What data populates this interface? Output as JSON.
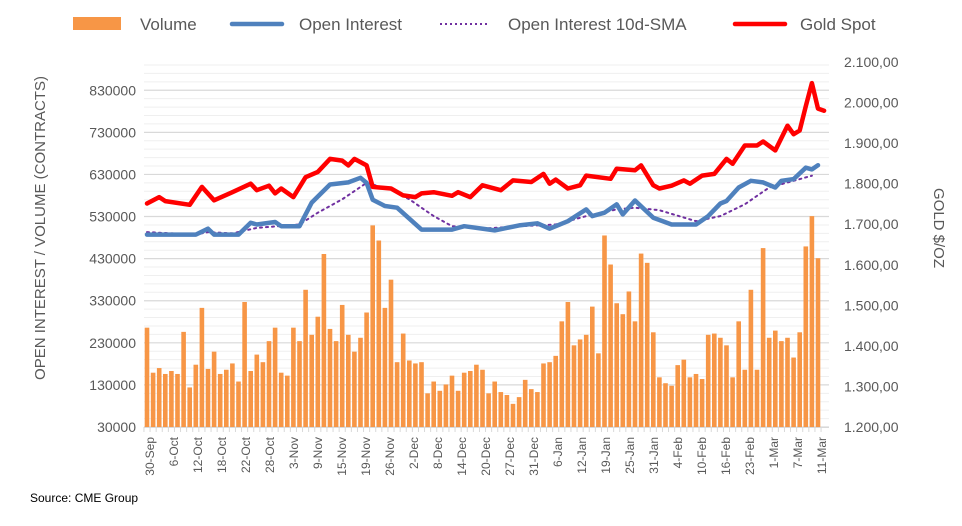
{
  "chart_data": {
    "type": "bar+line",
    "title": "",
    "source": "Source: CME Group",
    "legend_position": "top",
    "grid": true,
    "legend": [
      {
        "name": "Volume",
        "kind": "bar",
        "color": "#f79646"
      },
      {
        "name": "Open Interest",
        "kind": "line",
        "color": "#4f81bd"
      },
      {
        "name": "Open Interest 10d-SMA",
        "kind": "dotted-line",
        "color": "#7030a0"
      },
      {
        "name": "Gold Spot",
        "kind": "line",
        "color": "#ff0000"
      }
    ],
    "y_left": {
      "label": "OPEN INTEREST / VOLUME (CONTRACTS)",
      "range": [
        30000,
        890000
      ],
      "ticks": [
        "30000",
        "130000",
        "230000",
        "330000",
        "430000",
        "530000",
        "630000",
        "730000",
        "830000"
      ],
      "tick_values": [
        30000,
        130000,
        230000,
        330000,
        430000,
        530000,
        630000,
        730000,
        830000
      ]
    },
    "y_right": {
      "label": "GOLD $/OZ",
      "range": [
        1200,
        2100
      ],
      "ticks": [
        "1.200,00",
        "1.300,00",
        "1.400,00",
        "1.500,00",
        "1.600,00",
        "1.700,00",
        "1.800,00",
        "1.900,00",
        "2.000,00",
        "2.100,00"
      ],
      "tick_values": [
        1200,
        1300,
        1400,
        1500,
        1600,
        1700,
        1800,
        1900,
        2000,
        2100
      ]
    },
    "x_tick_labels": [
      "30-Sep",
      "6-Oct",
      "12-Oct",
      "18-Oct",
      "22-Oct",
      "28-Oct",
      "3-Nov",
      "9-Nov",
      "15-Nov",
      "19-Nov",
      "26-Nov",
      "2-Dec",
      "8-Dec",
      "14-Dec",
      "20-Dec",
      "27-Dec",
      "31-Dec",
      "6-Jan",
      "12-Jan",
      "19-Jan",
      "25-Jan",
      "31-Jan",
      "4-Feb",
      "10-Feb",
      "16-Feb",
      "23-Feb",
      "1-Mar",
      "7-Mar",
      "11-Mar"
    ],
    "volume": [
      266000,
      159000,
      170000,
      156000,
      163000,
      156000,
      256000,
      124000,
      178000,
      313000,
      168000,
      209000,
      156000,
      166000,
      181000,
      138000,
      327000,
      163000,
      202000,
      184000,
      234000,
      266000,
      159000,
      152000,
      266000,
      234000,
      356000,
      249000,
      292000,
      441000,
      263000,
      234000,
      320000,
      249000,
      209000,
      242000,
      302000,
      509000,
      473000,
      313000,
      380000,
      184000,
      252000,
      188000,
      181000,
      184000,
      110000,
      138000,
      116000,
      131000,
      152000,
      116000,
      159000,
      163000,
      178000,
      166000,
      110000,
      138000,
      113000,
      106000,
      85000,
      101000,
      142000,
      120000,
      113000,
      181000,
      184000,
      199000,
      281000,
      327000,
      224000,
      238000,
      249000,
      316000,
      205000,
      485000,
      416000,
      324000,
      298000,
      352000,
      281000,
      442000,
      420000,
      255000,
      148000,
      134000,
      128000,
      177000,
      190000,
      148000,
      156000,
      144000,
      249000,
      252000,
      242000,
      224000,
      148000,
      281000,
      166000,
      356000,
      166000,
      455000,
      242000,
      259000,
      234000,
      242000,
      195000,
      255000,
      459000,
      531000,
      431000
    ],
    "open_interest_points": [
      [
        0,
        487000
      ],
      [
        3,
        487000
      ],
      [
        8,
        487000
      ],
      [
        10,
        501000
      ],
      [
        11,
        487000
      ],
      [
        15,
        487000
      ],
      [
        17,
        515000
      ],
      [
        18,
        511000
      ],
      [
        21,
        517000
      ],
      [
        22,
        507000
      ],
      [
        25,
        507000
      ],
      [
        27,
        563000
      ],
      [
        30,
        606000
      ],
      [
        33,
        611000
      ],
      [
        35,
        622000
      ],
      [
        36,
        610000
      ],
      [
        37,
        570000
      ],
      [
        39,
        555000
      ],
      [
        41,
        551000
      ],
      [
        45,
        499000
      ],
      [
        50,
        499000
      ],
      [
        52,
        507000
      ],
      [
        57,
        497000
      ],
      [
        61,
        509000
      ],
      [
        64,
        514000
      ],
      [
        66,
        501000
      ],
      [
        69,
        519000
      ],
      [
        72,
        547000
      ],
      [
        73,
        531000
      ],
      [
        75,
        539000
      ],
      [
        77,
        559000
      ],
      [
        78,
        535000
      ],
      [
        80,
        568000
      ],
      [
        83,
        527000
      ],
      [
        86,
        511000
      ],
      [
        90,
        511000
      ],
      [
        92,
        531000
      ],
      [
        94,
        561000
      ],
      [
        95,
        567000
      ],
      [
        97,
        599000
      ],
      [
        99,
        615000
      ],
      [
        101,
        611000
      ],
      [
        103,
        599000
      ],
      [
        104,
        615000
      ],
      [
        106,
        619000
      ],
      [
        108,
        646000
      ],
      [
        109,
        642000
      ],
      [
        110,
        652000
      ]
    ],
    "sma_points": [
      [
        0,
        493000
      ],
      [
        8,
        487000
      ],
      [
        10,
        493000
      ],
      [
        14,
        490000
      ],
      [
        18,
        503000
      ],
      [
        25,
        511000
      ],
      [
        28,
        539000
      ],
      [
        32,
        571000
      ],
      [
        36,
        610000
      ],
      [
        40,
        594000
      ],
      [
        43,
        571000
      ],
      [
        47,
        531000
      ],
      [
        50,
        507000
      ],
      [
        55,
        501000
      ],
      [
        61,
        507000
      ],
      [
        67,
        511000
      ],
      [
        72,
        531000
      ],
      [
        77,
        547000
      ],
      [
        80,
        551000
      ],
      [
        84,
        545000
      ],
      [
        90,
        519000
      ],
      [
        94,
        531000
      ],
      [
        98,
        559000
      ],
      [
        102,
        599000
      ],
      [
        106,
        615000
      ],
      [
        109,
        627000
      ]
    ],
    "gold_points": [
      [
        0,
        1751
      ],
      [
        2,
        1767
      ],
      [
        3,
        1757
      ],
      [
        7,
        1748
      ],
      [
        9,
        1792
      ],
      [
        11,
        1759
      ],
      [
        14,
        1779
      ],
      [
        17,
        1800
      ],
      [
        18,
        1784
      ],
      [
        20,
        1795
      ],
      [
        21,
        1776
      ],
      [
        22,
        1788
      ],
      [
        24,
        1767
      ],
      [
        26,
        1816
      ],
      [
        28,
        1829
      ],
      [
        30,
        1861
      ],
      [
        32,
        1857
      ],
      [
        33,
        1845
      ],
      [
        34,
        1861
      ],
      [
        36,
        1845
      ],
      [
        37,
        1792
      ],
      [
        40,
        1788
      ],
      [
        42,
        1771
      ],
      [
        44,
        1767
      ],
      [
        45,
        1776
      ],
      [
        47,
        1779
      ],
      [
        50,
        1770
      ],
      [
        51,
        1779
      ],
      [
        53,
        1767
      ],
      [
        55,
        1796
      ],
      [
        58,
        1784
      ],
      [
        60,
        1808
      ],
      [
        63,
        1804
      ],
      [
        65,
        1824
      ],
      [
        66,
        1800
      ],
      [
        67,
        1810
      ],
      [
        69,
        1788
      ],
      [
        71,
        1796
      ],
      [
        72,
        1820
      ],
      [
        76,
        1812
      ],
      [
        77,
        1837
      ],
      [
        80,
        1833
      ],
      [
        81,
        1845
      ],
      [
        83,
        1796
      ],
      [
        84,
        1788
      ],
      [
        86,
        1795
      ],
      [
        88,
        1808
      ],
      [
        89,
        1800
      ],
      [
        91,
        1820
      ],
      [
        93,
        1824
      ],
      [
        95,
        1861
      ],
      [
        96,
        1849
      ],
      [
        98,
        1894
      ],
      [
        100,
        1894
      ],
      [
        101,
        1904
      ],
      [
        103,
        1882
      ],
      [
        105,
        1943
      ],
      [
        106,
        1922
      ],
      [
        107,
        1931
      ],
      [
        108,
        1991
      ],
      [
        109,
        2048
      ],
      [
        110,
        1985
      ],
      [
        111,
        1980
      ]
    ]
  }
}
